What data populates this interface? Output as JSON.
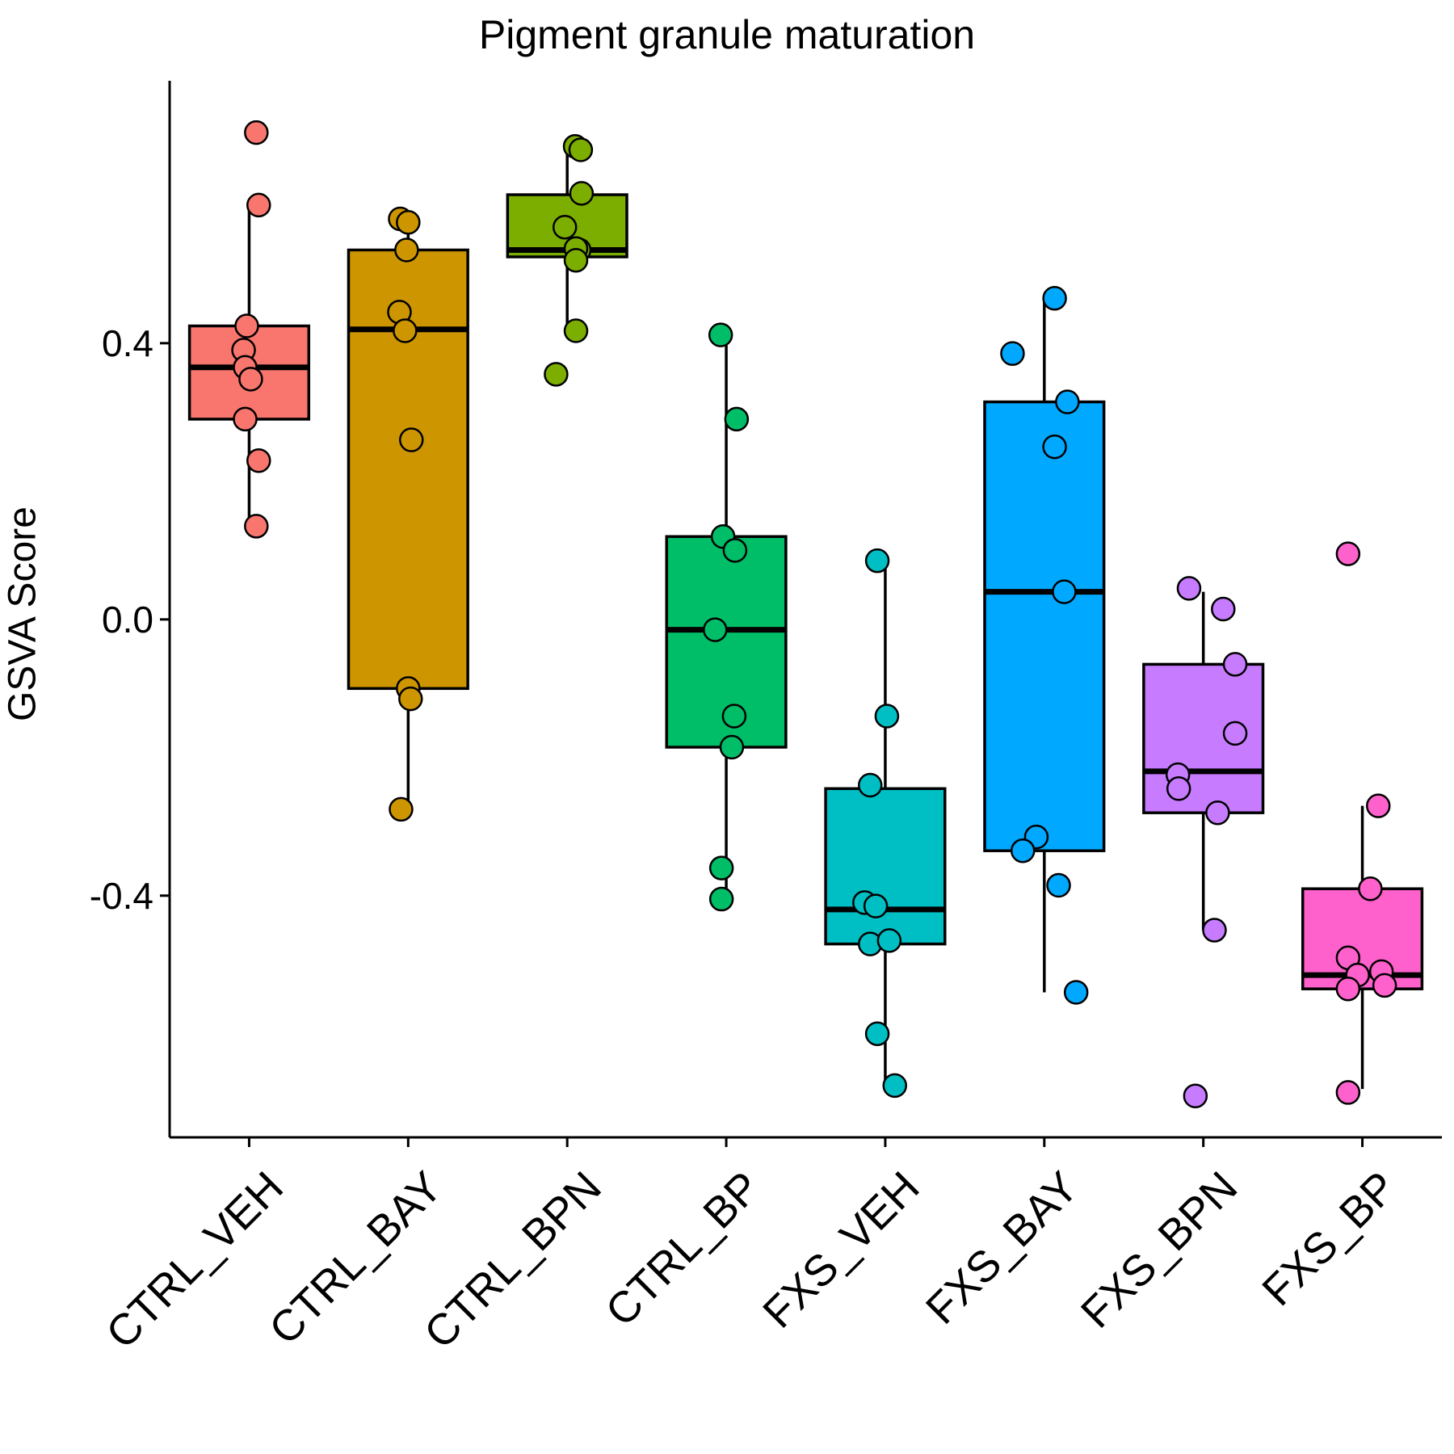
{
  "chart_data": {
    "type": "box",
    "title": "Pigment granule maturation",
    "ylabel": "GSVA Score",
    "xlabel": "",
    "ylim": [
      -0.75,
      0.78
    ],
    "yticks": [
      {
        "value": 0.4,
        "label": "0.4"
      },
      {
        "value": 0.0,
        "label": "0.0"
      },
      {
        "value": -0.4,
        "label": "-0.4"
      }
    ],
    "grid": false,
    "legend": "none",
    "categories": [
      "CTRL_VEH",
      "CTRL_BAY",
      "CTRL_BPN",
      "CTRL_BP",
      "FXS_VEH",
      "FXS_BAY",
      "FXS_BPN",
      "FXS_BP"
    ],
    "colors": [
      "#F8766D",
      "#CD9600",
      "#7CAE00",
      "#00BE67",
      "#00BFC4",
      "#00A9FF",
      "#C77CFF",
      "#FF61CC"
    ],
    "boxes": [
      {
        "whisker_low": 0.135,
        "q1": 0.29,
        "median": 0.365,
        "q3": 0.425,
        "whisker_high": 0.6
      },
      {
        "whisker_low": -0.27,
        "q1": -0.1,
        "median": 0.42,
        "q3": 0.535,
        "whisker_high": 0.58
      },
      {
        "whisker_low": 0.42,
        "q1": 0.525,
        "median": 0.535,
        "q3": 0.615,
        "whisker_high": 0.685
      },
      {
        "whisker_low": -0.405,
        "q1": -0.185,
        "median": -0.015,
        "q3": 0.12,
        "whisker_high": 0.41
      },
      {
        "whisker_low": -0.675,
        "q1": -0.47,
        "median": -0.42,
        "q3": -0.245,
        "whisker_high": 0.085
      },
      {
        "whisker_low": -0.54,
        "q1": -0.335,
        "median": 0.04,
        "q3": 0.315,
        "whisker_high": 0.465
      },
      {
        "whisker_low": -0.45,
        "q1": -0.28,
        "median": -0.22,
        "q3": -0.065,
        "whisker_high": 0.04
      },
      {
        "whisker_low": -0.68,
        "q1": -0.535,
        "median": -0.515,
        "q3": -0.39,
        "whisker_high": -0.27
      }
    ],
    "points": [
      [
        [
          0.045,
          0.705
        ],
        [
          0.06,
          0.6
        ],
        [
          -0.015,
          0.425
        ],
        [
          -0.035,
          0.39
        ],
        [
          -0.025,
          0.365
        ],
        [
          0.01,
          0.348
        ],
        [
          -0.025,
          0.29
        ],
        [
          0.06,
          0.23
        ],
        [
          0.045,
          0.135
        ]
      ],
      [
        [
          -0.05,
          0.58
        ],
        [
          0.0,
          0.575
        ],
        [
          -0.01,
          0.535
        ],
        [
          -0.055,
          0.445
        ],
        [
          -0.02,
          0.418
        ],
        [
          0.02,
          0.26
        ],
        [
          0.0,
          -0.1
        ],
        [
          0.015,
          -0.115
        ],
        [
          -0.045,
          -0.275
        ]
      ],
      [
        [
          0.05,
          0.685
        ],
        [
          0.085,
          0.68
        ],
        [
          0.09,
          0.617
        ],
        [
          -0.015,
          0.568
        ],
        [
          0.075,
          0.535
        ],
        [
          0.055,
          0.537
        ],
        [
          0.055,
          0.52
        ],
        [
          0.055,
          0.418
        ],
        [
          -0.07,
          0.355
        ]
      ],
      [
        [
          -0.035,
          0.412
        ],
        [
          -0.02,
          0.12
        ],
        [
          0.055,
          0.1
        ],
        [
          -0.07,
          -0.015
        ],
        [
          0.065,
          0.29
        ],
        [
          0.05,
          -0.14
        ],
        [
          0.035,
          -0.185
        ],
        [
          -0.03,
          -0.36
        ],
        [
          -0.03,
          -0.405
        ]
      ],
      [
        [
          -0.05,
          0.085
        ],
        [
          0.01,
          -0.14
        ],
        [
          -0.095,
          -0.24
        ],
        [
          -0.13,
          -0.41
        ],
        [
          -0.06,
          -0.415
        ],
        [
          -0.095,
          -0.47
        ],
        [
          0.025,
          -0.465
        ],
        [
          -0.05,
          -0.6
        ],
        [
          0.06,
          -0.675
        ]
      ],
      [
        [
          0.065,
          0.465
        ],
        [
          -0.2,
          0.385
        ],
        [
          0.145,
          0.315
        ],
        [
          0.065,
          0.25
        ],
        [
          0.125,
          0.04
        ],
        [
          -0.05,
          -0.315
        ],
        [
          -0.135,
          -0.335
        ],
        [
          0.09,
          -0.385
        ],
        [
          0.2,
          -0.54
        ]
      ],
      [
        [
          -0.09,
          0.045
        ],
        [
          0.125,
          0.015
        ],
        [
          0.2,
          -0.065
        ],
        [
          0.2,
          -0.165
        ],
        [
          -0.16,
          -0.225
        ],
        [
          -0.155,
          -0.245
        ],
        [
          0.09,
          -0.28
        ],
        [
          0.07,
          -0.45
        ],
        [
          -0.05,
          -0.69
        ]
      ],
      [
        [
          -0.09,
          0.095
        ],
        [
          0.1,
          -0.27
        ],
        [
          0.05,
          -0.39
        ],
        [
          -0.09,
          -0.49
        ],
        [
          -0.03,
          -0.515
        ],
        [
          0.12,
          -0.51
        ],
        [
          -0.09,
          -0.535
        ],
        [
          0.14,
          -0.53
        ],
        [
          -0.09,
          -0.685
        ]
      ]
    ]
  }
}
